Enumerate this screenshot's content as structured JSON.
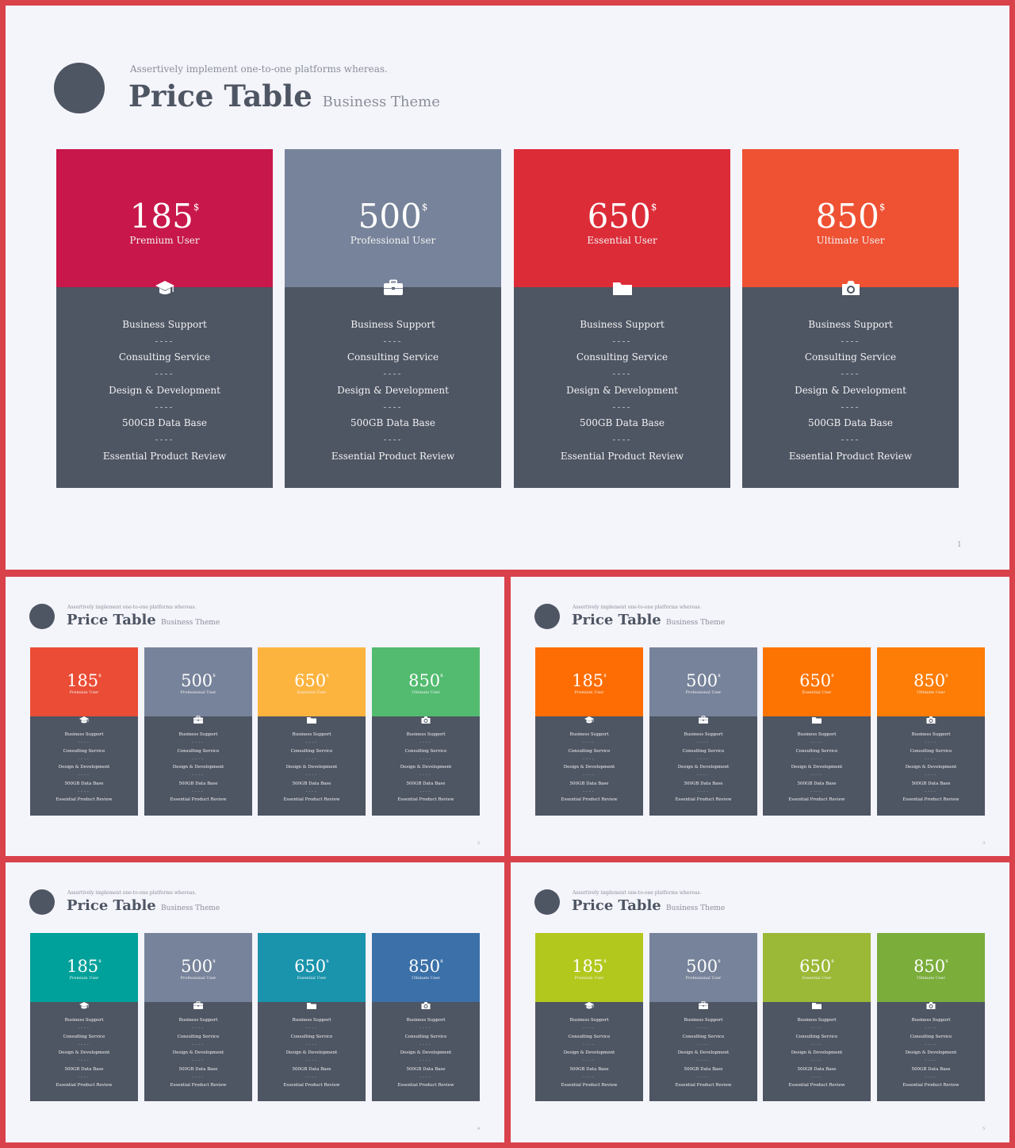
{
  "subtitle": "Assertively implement one-to-one platforms whereas.",
  "title": "Price Table",
  "title_suffix": "Business Theme",
  "separator": "----",
  "plans": [
    {
      "price": "185",
      "currency": "$",
      "tier": "Premium User",
      "icon": "graduation-cap-icon"
    },
    {
      "price": "500",
      "currency": "$",
      "tier": "Professional User",
      "icon": "briefcase-icon"
    },
    {
      "price": "650",
      "currency": "$",
      "tier": "Essential User",
      "icon": "folder-icon"
    },
    {
      "price": "850",
      "currency": "$",
      "tier": "Ultimate User",
      "icon": "camera-icon"
    }
  ],
  "features": [
    "Business Support",
    "Consulting Service",
    "Design & Development",
    "500GB Data Base",
    "Essential Product Review"
  ],
  "slides": [
    {
      "page": "1",
      "colors": [
        "#c8174a",
        "#77839a",
        "#dc2c38",
        "#ef5133"
      ]
    },
    {
      "page": "2",
      "colors": [
        "#ea4c35",
        "#77839a",
        "#fdb43f",
        "#52bb6f"
      ]
    },
    {
      "page": "3",
      "colors": [
        "#fe6d03",
        "#77839a",
        "#fe7402",
        "#fd7d06"
      ]
    },
    {
      "page": "4",
      "colors": [
        "#00a19a",
        "#77839a",
        "#1a93ac",
        "#3b70a8"
      ]
    },
    {
      "page": "5",
      "colors": [
        "#b2c81d",
        "#77839a",
        "#9bb836",
        "#7aad3a"
      ]
    }
  ]
}
